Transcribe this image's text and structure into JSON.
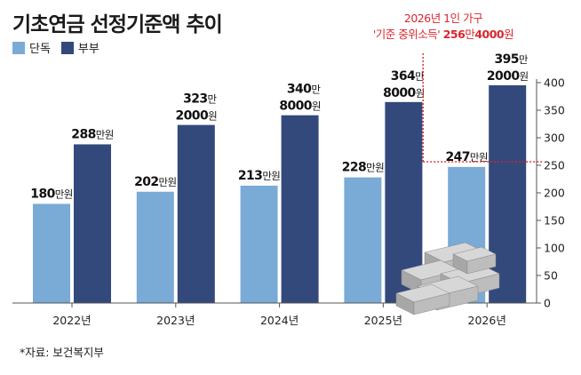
{
  "title": "기초연금 선정기준액 추이",
  "source": "*자료: 보건복지부",
  "annotation": {
    "line1": "2026년 1인 가구",
    "line2_prefix": "'기준 중위소득' ",
    "line2_value_a": "256",
    "line2_unit_a": "만",
    "line2_value_b": "4000",
    "line2_unit_b": "원",
    "color": "#d9262e",
    "reference_value": 256.4
  },
  "chart_data": {
    "type": "bar",
    "categories": [
      "2022년",
      "2023년",
      "2024년",
      "2025년",
      "2026년"
    ],
    "series": [
      {
        "name": "단독",
        "color": "#7aaad6",
        "values": [
          180,
          202,
          213,
          228,
          247
        ],
        "labels": [
          {
            "big": "180",
            "small": "만원"
          },
          {
            "big": "202",
            "small": "만원"
          },
          {
            "big": "213",
            "small": "만원"
          },
          {
            "big": "228",
            "small": "만원"
          },
          {
            "big": "247",
            "small": "만원"
          }
        ]
      },
      {
        "name": "부부",
        "color": "#33497b",
        "values": [
          288,
          323.2,
          340.8,
          364.8,
          395.2
        ],
        "labels": [
          {
            "big": "288",
            "small": "만원"
          },
          {
            "l1": "323",
            "l1s": "만",
            "l2": "2000",
            "l2s": "원"
          },
          {
            "l1": "340",
            "l1s": "만",
            "l2": "8000",
            "l2s": "원"
          },
          {
            "l1": "364",
            "l1s": "만",
            "l2": "8000",
            "l2s": "원"
          },
          {
            "l1": "395",
            "l1s": "만",
            "l2": "2000",
            "l2s": "원"
          }
        ]
      }
    ],
    "yaxis": {
      "min": 0,
      "max": 400,
      "ticks": [
        "0",
        "50",
        "100",
        "150",
        "200",
        "250",
        "300",
        "350",
        "400"
      ],
      "position": "right"
    },
    "legend_position": "top-left",
    "grid": false
  }
}
